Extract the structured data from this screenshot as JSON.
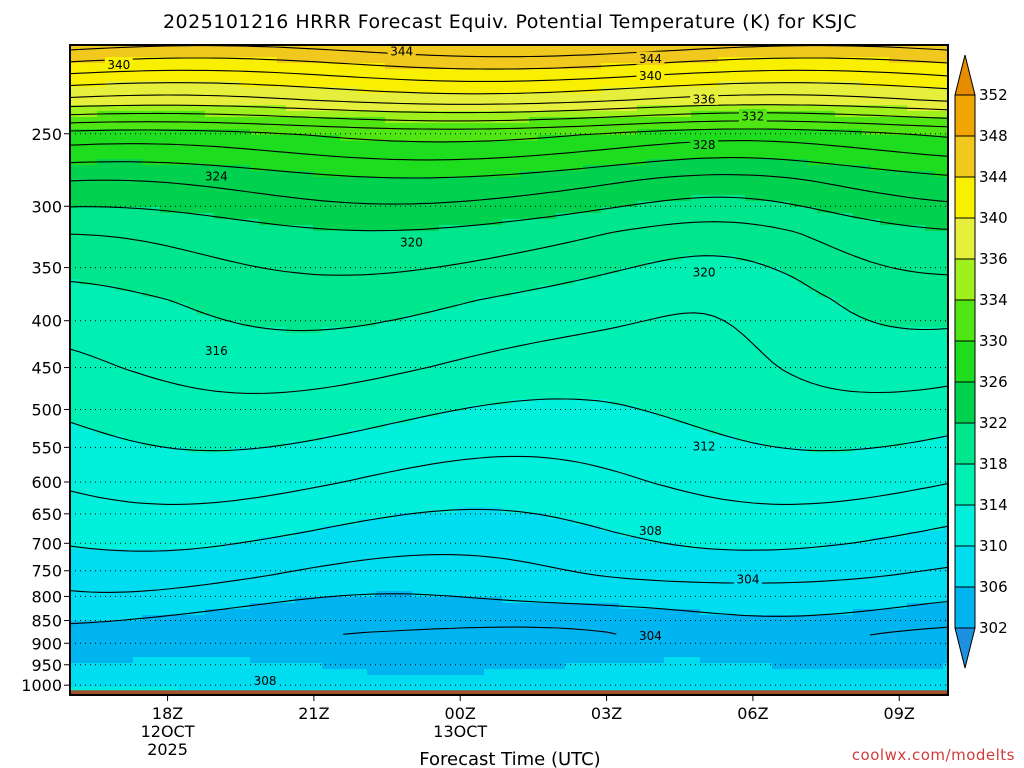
{
  "title": "2025101216 HRRR Forecast Equiv. Potential Temperature (K) for KSJC",
  "xlabel": "Forecast Time (UTC)",
  "credit": "coolwx.com/modelts",
  "colors": {
    "ground": "#a0522d",
    "contour": "#000000",
    "credit": "#d23b3b"
  },
  "chart_data": {
    "type": "heatmap",
    "title": "2025101216 HRRR Forecast Equiv. Potential Temperature (K) for KSJC",
    "xlabel": "Forecast Time (UTC)",
    "ylabel": "",
    "x_ticks": [
      {
        "label": "18Z",
        "sub": [
          "12OCT",
          "2025"
        ],
        "hour": 2
      },
      {
        "label": "21Z",
        "sub": [],
        "hour": 5
      },
      {
        "label": "00Z",
        "sub": [
          "13OCT"
        ],
        "hour": 8
      },
      {
        "label": "03Z",
        "sub": [],
        "hour": 11
      },
      {
        "label": "06Z",
        "sub": [],
        "hour": 14
      },
      {
        "label": "09Z",
        "sub": [],
        "hour": 17
      }
    ],
    "x_range_hours": [
      0,
      18
    ],
    "y_axis": "pressure (hPa), log scale, reversed",
    "y_ticks": [
      250,
      300,
      350,
      400,
      450,
      500,
      550,
      600,
      650,
      700,
      750,
      800,
      850,
      900,
      950,
      1000
    ],
    "y_range": [
      200,
      1025
    ],
    "surface_pressure": 1013,
    "grid": "dotted horizontal at each pressure level",
    "colorbar": {
      "levels": [
        302,
        306,
        310,
        314,
        318,
        322,
        326,
        330,
        334,
        336,
        340,
        344,
        348,
        352
      ],
      "bands": [
        {
          "min": null,
          "max": 302,
          "color": "#1e90e0"
        },
        {
          "min": 302,
          "max": 306,
          "color": "#00b4f0"
        },
        {
          "min": 306,
          "max": 310,
          "color": "#00dcf0"
        },
        {
          "min": 310,
          "max": 314,
          "color": "#00f0dc"
        },
        {
          "min": 314,
          "max": 318,
          "color": "#00f0b4"
        },
        {
          "min": 318,
          "max": 322,
          "color": "#00e68c"
        },
        {
          "min": 322,
          "max": 326,
          "color": "#00d250"
        },
        {
          "min": 326,
          "max": 330,
          "color": "#1edc1e"
        },
        {
          "min": 330,
          "max": 334,
          "color": "#50e614"
        },
        {
          "min": 334,
          "max": 336,
          "color": "#a0f01e"
        },
        {
          "min": 336,
          "max": 340,
          "color": "#e6f03c"
        },
        {
          "min": 340,
          "max": 344,
          "color": "#f8f000"
        },
        {
          "min": 344,
          "max": 348,
          "color": "#f0c81e"
        },
        {
          "min": 348,
          "max": 352,
          "color": "#f0a500"
        },
        {
          "min": 352,
          "max": null,
          "color": "#e68c00"
        }
      ]
    },
    "contour_interval": 2,
    "profile": [
      {
        "p": 200,
        "theta": 347
      },
      {
        "p": 230,
        "theta": 338
      },
      {
        "p": 250,
        "theta": 330
      },
      {
        "p": 280,
        "theta": 325
      },
      {
        "p": 320,
        "theta": 321
      },
      {
        "p": 380,
        "theta": 318
      },
      {
        "p": 450,
        "theta": 316
      },
      {
        "p": 520,
        "theta": 314
      },
      {
        "p": 600,
        "theta": 312
      },
      {
        "p": 680,
        "theta": 310
      },
      {
        "p": 760,
        "theta": 308
      },
      {
        "p": 830,
        "theta": 306
      },
      {
        "p": 880,
        "theta": 304.5
      },
      {
        "p": 920,
        "theta": 305
      },
      {
        "p": 960,
        "theta": 307
      },
      {
        "p": 1000,
        "theta": 309
      },
      {
        "p": 1025,
        "theta": 310
      }
    ],
    "contour_labels": [
      {
        "text": "340",
        "hour": 1.0,
        "p": 210
      },
      {
        "text": "344",
        "hour": 6.8,
        "p": 203
      },
      {
        "text": "344",
        "hour": 11.9,
        "p": 207
      },
      {
        "text": "340",
        "hour": 11.9,
        "p": 216
      },
      {
        "text": "336",
        "hour": 13.0,
        "p": 229
      },
      {
        "text": "332",
        "hour": 14.0,
        "p": 239
      },
      {
        "text": "328",
        "hour": 13.0,
        "p": 257
      },
      {
        "text": "324",
        "hour": 3.0,
        "p": 278
      },
      {
        "text": "320",
        "hour": 7.0,
        "p": 328
      },
      {
        "text": "320",
        "hour": 13.0,
        "p": 354
      },
      {
        "text": "316",
        "hour": 3.0,
        "p": 431
      },
      {
        "text": "312",
        "hour": 13.0,
        "p": 548
      },
      {
        "text": "308",
        "hour": 11.9,
        "p": 678
      },
      {
        "text": "304",
        "hour": 13.9,
        "p": 766
      },
      {
        "text": "304",
        "hour": 11.9,
        "p": 883
      },
      {
        "text": "308",
        "hour": 4.0,
        "p": 988
      }
    ]
  }
}
